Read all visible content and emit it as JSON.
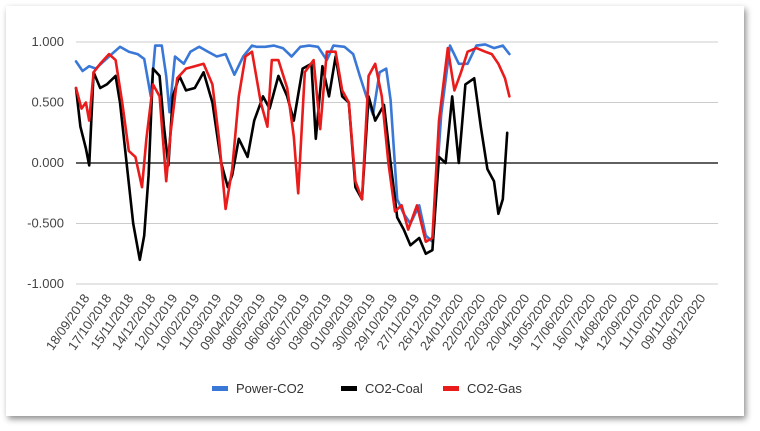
{
  "chart_data": {
    "type": "line",
    "title": "",
    "xlabel": "",
    "ylabel": "",
    "ylim": [
      -1.0,
      1.0
    ],
    "y_ticks": [
      "1.000",
      "0.500",
      "0.000",
      "-0.500",
      "-1.000"
    ],
    "y_tick_values": [
      1.0,
      0.5,
      0.0,
      -0.5,
      -1.0
    ],
    "x_ticks": [
      "18/09/2018",
      "17/10/2018",
      "15/11/2018",
      "14/12/2018",
      "12/01/2019",
      "10/02/2019",
      "11/03/2019",
      "09/04/2019",
      "08/05/2019",
      "06/06/2019",
      "05/07/2019",
      "03/08/2019",
      "01/09/2019",
      "30/09/2019",
      "29/10/2019",
      "27/11/2019",
      "26/12/2019",
      "24/01/2020",
      "22/02/2020",
      "22/03/2020",
      "20/04/2020",
      "19/05/2020",
      "17/06/2020",
      "16/07/2020",
      "14/08/2020",
      "12/09/2020",
      "11/10/2020",
      "09/11/2020",
      "08/12/2020"
    ],
    "grid": true,
    "legend_position": "bottom",
    "series": [
      {
        "name": "Power-CO2",
        "color": "#3a78d8",
        "points": [
          [
            0,
            0.84
          ],
          [
            0.3,
            0.76
          ],
          [
            0.6,
            0.8
          ],
          [
            0.9,
            0.78
          ],
          [
            1.2,
            0.83
          ],
          [
            1.5,
            0.88
          ],
          [
            2.0,
            0.96
          ],
          [
            2.4,
            0.92
          ],
          [
            2.8,
            0.9
          ],
          [
            3.1,
            0.86
          ],
          [
            3.4,
            0.55
          ],
          [
            3.6,
            0.97
          ],
          [
            3.9,
            0.97
          ],
          [
            4.1,
            0.72
          ],
          [
            4.25,
            0.42
          ],
          [
            4.5,
            0.88
          ],
          [
            4.9,
            0.82
          ],
          [
            5.2,
            0.92
          ],
          [
            5.6,
            0.96
          ],
          [
            6.0,
            0.92
          ],
          [
            6.4,
            0.88
          ],
          [
            6.8,
            0.9
          ],
          [
            7.2,
            0.73
          ],
          [
            7.6,
            0.88
          ],
          [
            8.0,
            0.97
          ],
          [
            8.2,
            0.96
          ],
          [
            8.6,
            0.96
          ],
          [
            9.0,
            0.97
          ],
          [
            9.4,
            0.95
          ],
          [
            9.8,
            0.88
          ],
          [
            10.2,
            0.96
          ],
          [
            10.6,
            0.97
          ],
          [
            11.0,
            0.96
          ],
          [
            11.4,
            0.85
          ],
          [
            11.7,
            0.97
          ],
          [
            12.2,
            0.96
          ],
          [
            12.6,
            0.9
          ],
          [
            12.9,
            0.72
          ],
          [
            13.2,
            0.55
          ],
          [
            13.5,
            0.4
          ],
          [
            13.8,
            0.75
          ],
          [
            14.1,
            0.78
          ],
          [
            14.3,
            0.52
          ],
          [
            14.6,
            -0.3
          ],
          [
            14.9,
            -0.42
          ],
          [
            15.2,
            -0.5
          ],
          [
            15.6,
            -0.35
          ],
          [
            15.9,
            -0.6
          ],
          [
            16.2,
            -0.65
          ],
          [
            16.6,
            0.4
          ],
          [
            17.0,
            0.97
          ],
          [
            17.4,
            0.82
          ],
          [
            17.8,
            0.82
          ],
          [
            18.2,
            0.97
          ],
          [
            18.6,
            0.98
          ],
          [
            19.0,
            0.95
          ],
          [
            19.4,
            0.97
          ],
          [
            19.7,
            0.9
          ]
        ]
      },
      {
        "name": "CO2-Coal",
        "color": "#000000",
        "points": [
          [
            0,
            0.62
          ],
          [
            0.2,
            0.3
          ],
          [
            0.45,
            0.12
          ],
          [
            0.6,
            -0.02
          ],
          [
            0.8,
            0.75
          ],
          [
            1.1,
            0.62
          ],
          [
            1.4,
            0.65
          ],
          [
            1.8,
            0.72
          ],
          [
            2.0,
            0.5
          ],
          [
            2.3,
            0.0
          ],
          [
            2.6,
            -0.5
          ],
          [
            2.9,
            -0.8
          ],
          [
            3.1,
            -0.6
          ],
          [
            3.3,
            -0.1
          ],
          [
            3.5,
            0.78
          ],
          [
            3.8,
            0.72
          ],
          [
            4.0,
            0.3
          ],
          [
            4.2,
            -0.02
          ],
          [
            4.4,
            0.55
          ],
          [
            4.7,
            0.72
          ],
          [
            5.0,
            0.6
          ],
          [
            5.4,
            0.62
          ],
          [
            5.8,
            0.75
          ],
          [
            6.2,
            0.5
          ],
          [
            6.6,
            0.0
          ],
          [
            6.9,
            -0.2
          ],
          [
            7.1,
            -0.1
          ],
          [
            7.4,
            0.2
          ],
          [
            7.8,
            0.05
          ],
          [
            8.1,
            0.35
          ],
          [
            8.5,
            0.55
          ],
          [
            8.8,
            0.45
          ],
          [
            9.2,
            0.72
          ],
          [
            9.6,
            0.55
          ],
          [
            9.9,
            0.35
          ],
          [
            10.3,
            0.78
          ],
          [
            10.7,
            0.82
          ],
          [
            10.9,
            0.2
          ],
          [
            11.2,
            0.8
          ],
          [
            11.5,
            0.55
          ],
          [
            11.8,
            0.88
          ],
          [
            12.1,
            0.55
          ],
          [
            12.4,
            0.5
          ],
          [
            12.7,
            -0.2
          ],
          [
            13.0,
            -0.3
          ],
          [
            13.3,
            0.55
          ],
          [
            13.6,
            0.35
          ],
          [
            14.0,
            0.48
          ],
          [
            14.3,
            0.0
          ],
          [
            14.6,
            -0.45
          ],
          [
            14.9,
            -0.55
          ],
          [
            15.2,
            -0.68
          ],
          [
            15.6,
            -0.62
          ],
          [
            15.9,
            -0.75
          ],
          [
            16.2,
            -0.72
          ],
          [
            16.5,
            0.05
          ],
          [
            16.8,
            0.0
          ],
          [
            17.1,
            0.55
          ],
          [
            17.4,
            0.0
          ],
          [
            17.7,
            0.65
          ],
          [
            18.1,
            0.7
          ],
          [
            18.4,
            0.3
          ],
          [
            18.7,
            -0.05
          ],
          [
            19.0,
            -0.15
          ],
          [
            19.2,
            -0.42
          ],
          [
            19.4,
            -0.3
          ],
          [
            19.6,
            0.25
          ]
        ]
      },
      {
        "name": "CO2-Gas",
        "color": "#ea1b1b",
        "points": [
          [
            0,
            0.62
          ],
          [
            0.25,
            0.45
          ],
          [
            0.45,
            0.5
          ],
          [
            0.6,
            0.35
          ],
          [
            0.8,
            0.75
          ],
          [
            1.1,
            0.82
          ],
          [
            1.5,
            0.9
          ],
          [
            1.8,
            0.85
          ],
          [
            2.1,
            0.5
          ],
          [
            2.4,
            0.1
          ],
          [
            2.7,
            0.05
          ],
          [
            3.0,
            -0.2
          ],
          [
            3.2,
            0.2
          ],
          [
            3.5,
            0.65
          ],
          [
            3.8,
            0.55
          ],
          [
            4.1,
            -0.15
          ],
          [
            4.3,
            0.25
          ],
          [
            4.6,
            0.7
          ],
          [
            5.0,
            0.78
          ],
          [
            5.4,
            0.8
          ],
          [
            5.8,
            0.82
          ],
          [
            6.2,
            0.65
          ],
          [
            6.5,
            0.2
          ],
          [
            6.8,
            -0.38
          ],
          [
            7.1,
            -0.05
          ],
          [
            7.4,
            0.55
          ],
          [
            7.7,
            0.88
          ],
          [
            8.0,
            0.92
          ],
          [
            8.4,
            0.5
          ],
          [
            8.7,
            0.3
          ],
          [
            8.9,
            0.85
          ],
          [
            9.2,
            0.85
          ],
          [
            9.6,
            0.62
          ],
          [
            9.9,
            0.22
          ],
          [
            10.1,
            -0.25
          ],
          [
            10.4,
            0.75
          ],
          [
            10.8,
            0.85
          ],
          [
            11.1,
            0.28
          ],
          [
            11.4,
            0.92
          ],
          [
            11.8,
            0.92
          ],
          [
            12.1,
            0.6
          ],
          [
            12.4,
            0.5
          ],
          [
            12.7,
            -0.15
          ],
          [
            13.0,
            -0.3
          ],
          [
            13.3,
            0.72
          ],
          [
            13.6,
            0.82
          ],
          [
            13.9,
            0.55
          ],
          [
            14.2,
            0.0
          ],
          [
            14.5,
            -0.4
          ],
          [
            14.8,
            -0.35
          ],
          [
            15.1,
            -0.55
          ],
          [
            15.5,
            -0.35
          ],
          [
            15.9,
            -0.65
          ],
          [
            16.2,
            -0.62
          ],
          [
            16.5,
            0.35
          ],
          [
            16.9,
            0.95
          ],
          [
            17.2,
            0.6
          ],
          [
            17.5,
            0.75
          ],
          [
            17.8,
            0.92
          ],
          [
            18.2,
            0.95
          ],
          [
            18.6,
            0.92
          ],
          [
            18.9,
            0.9
          ],
          [
            19.2,
            0.82
          ],
          [
            19.5,
            0.7
          ],
          [
            19.7,
            0.55
          ]
        ]
      }
    ]
  }
}
